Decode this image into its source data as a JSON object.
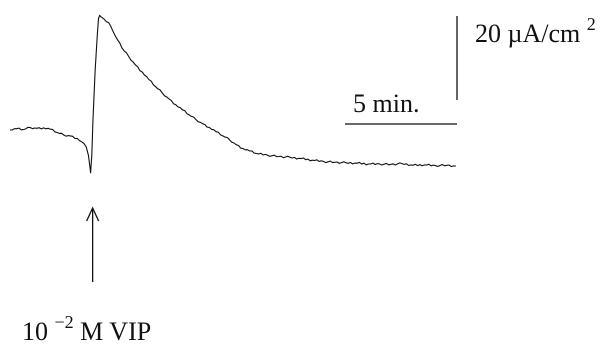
{
  "chart_data": {
    "type": "line",
    "title": "",
    "xlabel": "",
    "ylabel": "",
    "x_unit": "min",
    "y_unit": "µA/cm²",
    "grid": false,
    "legend": "none",
    "scale_bars": {
      "current": {
        "value": 20,
        "label_main": "20 µA/cm",
        "label_sup": "2"
      },
      "time": {
        "value": 5,
        "label": "5 min."
      }
    },
    "annotation": {
      "label_base": "10",
      "label_exp": "−2",
      "label_rest": " M VIP",
      "x_min": 3.6
    },
    "series": [
      {
        "x": [
          0,
          0.3,
          0.6,
          0.9,
          1.2,
          1.5,
          1.8,
          2.1,
          2.4,
          2.7,
          3.0,
          3.2,
          3.4,
          3.5,
          3.55,
          3.6,
          3.65,
          3.7,
          3.8,
          3.9,
          3.95,
          4.0,
          4.05,
          4.2,
          4.4,
          4.6,
          4.8,
          5.0,
          5.3,
          5.6,
          5.9,
          6.2,
          6.5,
          6.8,
          7.1,
          7.4,
          7.7,
          8.0,
          8.3,
          8.6,
          8.9,
          9.2,
          9.5,
          9.8,
          10.1,
          10.4,
          10.7,
          11.0,
          11.5,
          12.0,
          12.5,
          13.0,
          13.5,
          14.0,
          14.5,
          15.0,
          15.5,
          16.0,
          16.5,
          17.0,
          17.5,
          18.0,
          18.5,
          19.0,
          19.5,
          19.9
        ],
        "y": [
          0,
          0.3,
          0.1,
          0.6,
          0.4,
          0.5,
          0.2,
          -0.6,
          -1.2,
          -1.4,
          -2.0,
          -2.8,
          -4.0,
          -6.0,
          -8.0,
          -10.2,
          -6.0,
          2.0,
          14.0,
          23.0,
          26.5,
          27.3,
          27.0,
          26.4,
          25.6,
          23.5,
          21.5,
          19.5,
          17.5,
          15.5,
          13.8,
          12.0,
          10.3,
          8.8,
          7.4,
          6.0,
          4.8,
          3.6,
          2.5,
          1.5,
          0.6,
          -0.4,
          -1.4,
          -2.3,
          -3.5,
          -4.4,
          -5.0,
          -5.6,
          -6.0,
          -6.3,
          -6.5,
          -6.8,
          -7.2,
          -7.5,
          -7.7,
          -7.8,
          -7.9,
          -8.1,
          -8.1,
          -8.2,
          -8.0,
          -8.4,
          -8.3,
          -8.5,
          -8.4,
          -8.6
        ]
      }
    ]
  }
}
